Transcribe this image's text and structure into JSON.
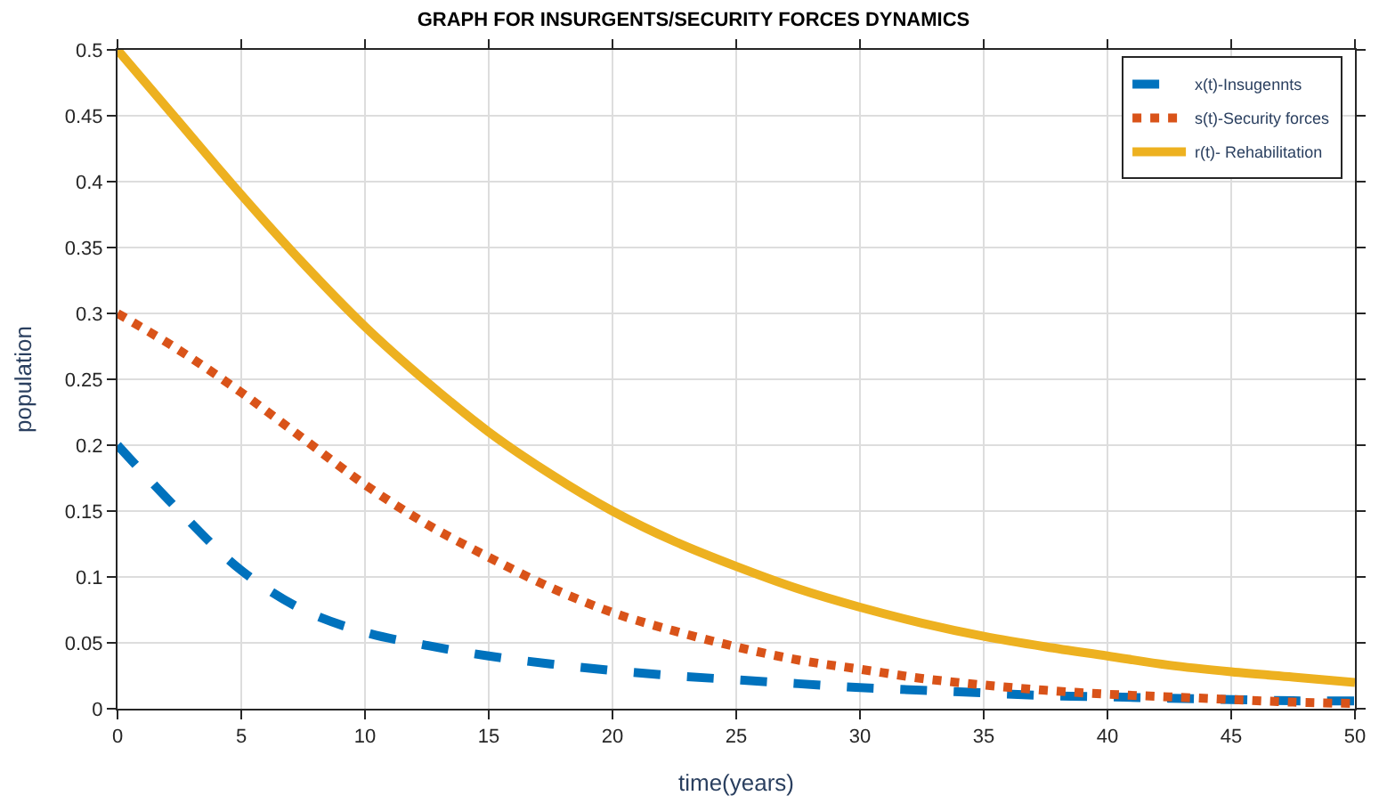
{
  "chart_data": {
    "type": "line",
    "title": "GRAPH FOR INSURGENTS/SECURITY FORCES DYNAMICS",
    "xlabel": "time(years)",
    "ylabel": "population",
    "x": [
      0,
      2.5,
      5,
      7.5,
      10,
      12.5,
      15,
      17.5,
      20,
      22.5,
      25,
      27.5,
      30,
      32.5,
      35,
      37.5,
      40,
      42.5,
      45,
      47.5,
      50
    ],
    "series": [
      {
        "name": "x(t)-Insugennts",
        "color": "#0072bd",
        "line_style": "dashed",
        "values": [
          0.2,
          0.15,
          0.105,
          0.075,
          0.058,
          0.048,
          0.04,
          0.034,
          0.029,
          0.025,
          0.022,
          0.019,
          0.016,
          0.014,
          0.012,
          0.01,
          0.009,
          0.008,
          0.007,
          0.006,
          0.006
        ]
      },
      {
        "name": "s(t)-Security forces",
        "color": "#d95319",
        "line_style": "dotted",
        "values": [
          0.3,
          0.272,
          0.24,
          0.205,
          0.17,
          0.14,
          0.115,
          0.092,
          0.073,
          0.059,
          0.047,
          0.037,
          0.03,
          0.023,
          0.018,
          0.014,
          0.011,
          0.009,
          0.007,
          0.005,
          0.004
        ]
      },
      {
        "name": "r(t)- Rehabilitation",
        "color": "#edb120",
        "line_style": "solid",
        "values": [
          0.5,
          0.445,
          0.39,
          0.338,
          0.29,
          0.248,
          0.21,
          0.178,
          0.15,
          0.127,
          0.108,
          0.091,
          0.077,
          0.065,
          0.055,
          0.047,
          0.04,
          0.033,
          0.028,
          0.024,
          0.02
        ]
      }
    ],
    "xlim": [
      0,
      50
    ],
    "xticks": [
      0,
      5,
      10,
      15,
      20,
      25,
      30,
      35,
      40,
      45,
      50
    ],
    "ylim": [
      0,
      0.5
    ],
    "yticks": [
      0,
      0.05,
      0.1,
      0.15,
      0.2,
      0.25,
      0.3,
      0.35,
      0.4,
      0.45,
      0.5
    ],
    "grid": true,
    "legend": "top right"
  }
}
